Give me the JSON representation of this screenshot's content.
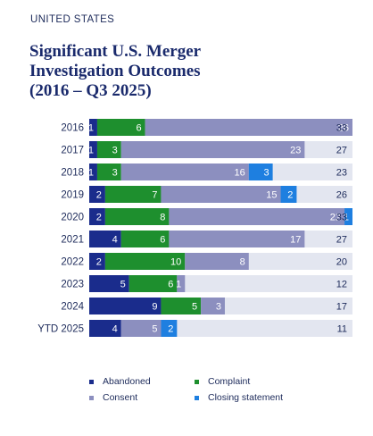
{
  "header": {
    "eyebrow": "UNITED STATES",
    "title_line1": "Significant U.S. Merger",
    "title_line2": "Investigation Outcomes",
    "title_line3": "(2016 – Q3 2025)"
  },
  "colors": {
    "abandoned": "#1a2c8c",
    "complaint": "#1e8f2e",
    "consent": "#8c8fbf",
    "closing": "#1e7fe0",
    "remainder": "#e3e6f0",
    "label_light": "#ffffff",
    "label_dark": "#1c2a5a"
  },
  "chart_data": {
    "type": "bar",
    "orientation": "horizontal",
    "stacked": true,
    "categories": [
      "2016",
      "2017",
      "2018",
      "2019",
      "2020",
      "2021",
      "2022",
      "2023",
      "2024",
      "YTD 2025"
    ],
    "series": [
      {
        "name": "Abandoned",
        "key": "abandoned",
        "values": [
          1,
          1,
          1,
          2,
          2,
          4,
          2,
          5,
          9,
          4
        ]
      },
      {
        "name": "Complaint",
        "key": "complaint",
        "values": [
          6,
          3,
          3,
          7,
          8,
          6,
          10,
          6,
          5,
          null
        ]
      },
      {
        "name": "Consent",
        "key": "consent",
        "values": [
          26,
          23,
          16,
          15,
          22,
          17,
          8,
          1,
          3,
          5
        ]
      },
      {
        "name": "Closing statement",
        "key": "closing",
        "values": [
          null,
          null,
          3,
          2,
          1,
          null,
          null,
          null,
          null,
          2
        ]
      }
    ],
    "totals": [
      33,
      27,
      23,
      26,
      33,
      27,
      20,
      12,
      17,
      11
    ],
    "xlim": [
      0,
      33
    ]
  },
  "legend": {
    "items": [
      {
        "label": "Abandoned",
        "key": "abandoned"
      },
      {
        "label": "Complaint",
        "key": "complaint"
      },
      {
        "label": "Consent",
        "key": "consent"
      },
      {
        "label": "Closing statement",
        "key": "closing"
      }
    ]
  }
}
